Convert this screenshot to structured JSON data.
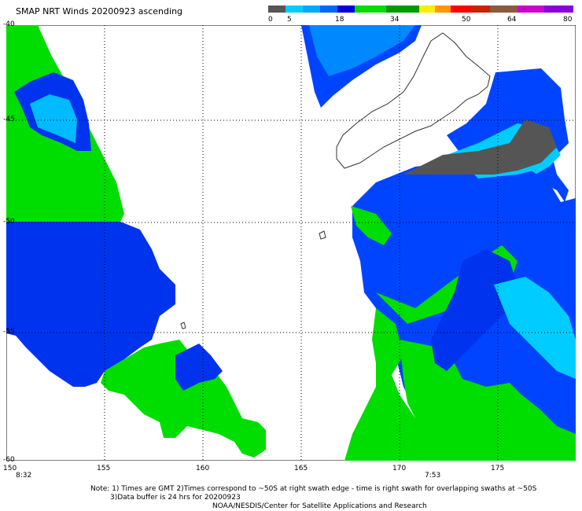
{
  "title": "SMAP NRT Winds 20200923 ascending",
  "colorbar": {
    "labels": [
      "0",
      "5",
      "18",
      "34",
      "50",
      "64",
      "80"
    ],
    "segments": [
      "#555555",
      "#00cccc",
      "#0066ff",
      "#0000cc",
      "#00cc00",
      "#00aa00",
      "#ffff00",
      "#ff9900",
      "#ff0000",
      "#cc3300",
      "#996633",
      "#cc00cc",
      "#9900ff"
    ]
  },
  "axes": {
    "lon_labels": [
      "150",
      "155",
      "160",
      "165",
      "170",
      "175"
    ],
    "lat_labels": [
      "-40",
      "-45",
      "-50",
      "-55",
      "-60"
    ]
  },
  "swath_times": [
    "8:32",
    "7:53"
  ],
  "notes": {
    "line1": "Note: 1) Times are GMT 2)Times correspond to ~50S at right swath edge - time is right swath for overlapping swaths at ~50S",
    "line2": "3)Data buffer is 24 hrs for 20200923",
    "line3": "NOAA/NESDIS/Center for Satellite Applications and Research"
  },
  "colors": {
    "land_outline": "#333333",
    "calm": "#555555",
    "light": "#00e5ff",
    "moderate": "#0044ff",
    "strong": "#00ee00"
  }
}
